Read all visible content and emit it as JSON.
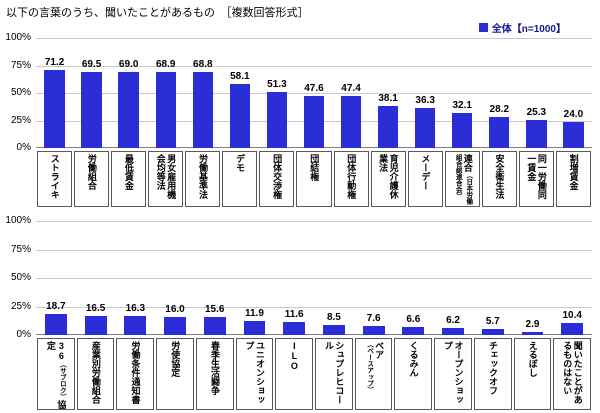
{
  "title": "以下の言葉のうち、聞いたことがあるもの　［複数回答形式］",
  "legend": {
    "label": "全体【n=1000】"
  },
  "colors": {
    "bar": "#2b2dd6",
    "legend_text": "#17178c",
    "gridline": "#c9c9c9"
  },
  "chart_data": [
    {
      "type": "bar",
      "ylabel": "%",
      "ylim": [
        0,
        100
      ],
      "grid": true,
      "yticks": [
        "100%",
        "75%",
        "50%",
        "25%",
        "0%"
      ],
      "categories": [
        {
          "value": 71.2,
          "spans": [
            {
              "text": "ストライキ"
            }
          ]
        },
        {
          "value": 69.5,
          "spans": [
            {
              "text": "労働組合"
            }
          ]
        },
        {
          "value": 69.0,
          "spans": [
            {
              "text": "最低賃金"
            }
          ]
        },
        {
          "value": 68.9,
          "spans": [
            {
              "text": "男女雇用機会均等法"
            }
          ]
        },
        {
          "value": 68.8,
          "spans": [
            {
              "text": "労働基準法"
            }
          ]
        },
        {
          "value": 58.1,
          "spans": [
            {
              "text": "デモ"
            }
          ]
        },
        {
          "value": 51.3,
          "spans": [
            {
              "text": "団体交渉権"
            }
          ]
        },
        {
          "value": 47.6,
          "spans": [
            {
              "text": "団結権"
            }
          ]
        },
        {
          "value": 47.4,
          "spans": [
            {
              "text": "団体行動権"
            }
          ]
        },
        {
          "value": 38.1,
          "spans": [
            {
              "text": "育児介護休業法"
            }
          ]
        },
        {
          "value": 36.3,
          "spans": [
            {
              "text": "メーデー"
            }
          ]
        },
        {
          "value": 32.1,
          "spans": [
            {
              "text": "連合"
            },
            {
              "text": "（日本労働組合総連合会）",
              "small": true
            }
          ]
        },
        {
          "value": 28.2,
          "spans": [
            {
              "text": "安全衛生法"
            }
          ]
        },
        {
          "value": 25.3,
          "spans": [
            {
              "text": "同一労働同一賃金"
            }
          ]
        },
        {
          "value": 24.0,
          "spans": [
            {
              "text": "割増賃金"
            }
          ]
        }
      ]
    },
    {
      "type": "bar",
      "ylabel": "%",
      "ylim": [
        0,
        100
      ],
      "grid": true,
      "yticks": [
        "100%",
        "75%",
        "50%",
        "25%",
        "0%"
      ],
      "categories": [
        {
          "value": 18.7,
          "spans": [
            {
              "text": "36"
            },
            {
              "text": "（サブロク）",
              "small": true
            },
            {
              "text": "協定"
            }
          ]
        },
        {
          "value": 16.5,
          "spans": [
            {
              "text": "産業別労働組合"
            }
          ]
        },
        {
          "value": 16.3,
          "spans": [
            {
              "text": "労働条件通知書"
            }
          ]
        },
        {
          "value": 16.0,
          "spans": [
            {
              "text": "労使協定"
            }
          ]
        },
        {
          "value": 15.6,
          "spans": [
            {
              "text": "春季生活闘争"
            }
          ]
        },
        {
          "value": 11.9,
          "spans": [
            {
              "text": "ユニオンショップ"
            }
          ]
        },
        {
          "value": 11.6,
          "spans": [
            {
              "text": "ILO"
            }
          ]
        },
        {
          "value": 8.5,
          "spans": [
            {
              "text": "シュプレヒコール"
            }
          ]
        },
        {
          "value": 7.6,
          "spans": [
            {
              "text": "ベア"
            },
            {
              "text": "（ベースアップ）",
              "small": true
            }
          ]
        },
        {
          "value": 6.6,
          "spans": [
            {
              "text": "くるみん"
            }
          ]
        },
        {
          "value": 6.2,
          "spans": [
            {
              "text": "オープンショップ"
            }
          ]
        },
        {
          "value": 5.7,
          "spans": [
            {
              "text": "チェックオフ"
            }
          ]
        },
        {
          "value": 2.9,
          "spans": [
            {
              "text": "えるぼし"
            }
          ]
        },
        {
          "value": 10.4,
          "spans": [
            {
              "text": "聞いたことがあるものはない"
            }
          ]
        }
      ]
    }
  ]
}
